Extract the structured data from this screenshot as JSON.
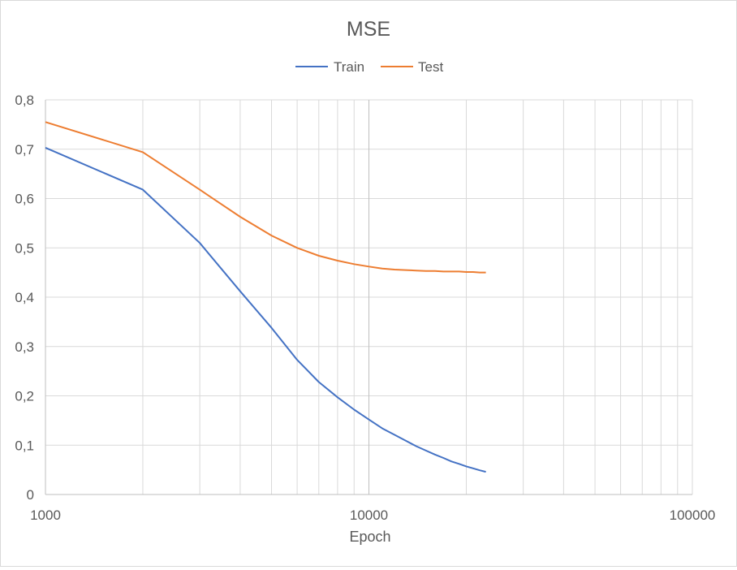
{
  "chart_data": {
    "type": "line",
    "title": "MSE",
    "xlabel": "Epoch",
    "ylabel": "",
    "x_scale": "log",
    "xlim": [
      1000,
      100000
    ],
    "ylim": [
      0,
      0.8
    ],
    "x_tick_labels": [
      "1000",
      "10000",
      "100000"
    ],
    "y_tick_labels": [
      "0",
      "0,1",
      "0,2",
      "0,3",
      "0,4",
      "0,5",
      "0,6",
      "0,7",
      "0,8"
    ],
    "y_ticks": [
      0,
      0.1,
      0.2,
      0.3,
      0.4,
      0.5,
      0.6,
      0.7,
      0.8
    ],
    "grid": true,
    "legend_position": "top",
    "series": [
      {
        "name": "Train",
        "color": "#4472c4",
        "x": [
          1000,
          2000,
          3000,
          4000,
          5000,
          6000,
          7000,
          8000,
          9000,
          10000,
          11000,
          12000,
          13000,
          14000,
          15000,
          16000,
          17000,
          18000,
          19000,
          20000,
          21000,
          22000,
          23000
        ],
        "y": [
          0.703,
          0.618,
          0.51,
          0.412,
          0.338,
          0.273,
          0.228,
          0.197,
          0.172,
          0.152,
          0.134,
          0.121,
          0.109,
          0.098,
          0.089,
          0.081,
          0.074,
          0.067,
          0.062,
          0.057,
          0.053,
          0.049,
          0.046
        ]
      },
      {
        "name": "Test",
        "color": "#ed7d31",
        "x": [
          1000,
          2000,
          3000,
          4000,
          5000,
          6000,
          7000,
          8000,
          9000,
          10000,
          11000,
          12000,
          13000,
          14000,
          15000,
          16000,
          17000,
          18000,
          19000,
          20000,
          21000,
          22000,
          23000
        ],
        "y": [
          0.755,
          0.694,
          0.618,
          0.563,
          0.525,
          0.5,
          0.484,
          0.474,
          0.467,
          0.462,
          0.458,
          0.456,
          0.455,
          0.454,
          0.453,
          0.453,
          0.452,
          0.452,
          0.452,
          0.451,
          0.451,
          0.45,
          0.45
        ]
      }
    ],
    "colors": {
      "gridline": "#d9d9d9",
      "axis_text": "#595959"
    }
  }
}
